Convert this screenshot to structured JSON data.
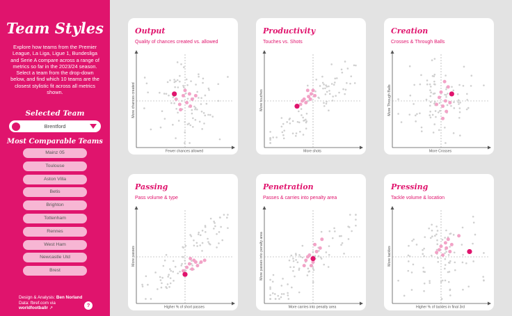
{
  "sidebar": {
    "title": "Team Styles",
    "intro": "Explore how teams from the Premier League, La Liga, Ligue 1, Bundesliga and Serie A compare across a range of metrics so far in the 2023/24 season. Select a team from the drop-down below, and find which 10 teams are the closest stylistic fit across all metrics shown.",
    "selected_heading": "Selected Team",
    "selected_team": "Brentford",
    "comparable_heading": "Most Comparable Teams",
    "comparable_teams": [
      "Mainz 05",
      "Toulouse",
      "Aston Villa",
      "Betis",
      "Brighton",
      "Tottenham",
      "Rennes",
      "West Ham",
      "Newcastle Utd",
      "Brest"
    ],
    "credit_label": "Design & Analysis:",
    "credit_name": "Ben Norland",
    "data_source_1": "Data: fbref.com via",
    "data_source_2": "worldfootballr",
    "help_label": "?"
  },
  "colors": {
    "brand": "#e0146d",
    "comparable": "#f2a3c7",
    "other": "#cfcfcf"
  },
  "chart_data": [
    {
      "type": "scatter",
      "title": "Output",
      "subtitle": "Quality of chances created vs. allowed",
      "xlabel": "Fewer chances allowed",
      "ylabel": "More chances created",
      "seed": 11,
      "mode": "random",
      "selected": [
        0.38,
        0.58
      ],
      "comparable": [
        [
          0.48,
          0.56
        ],
        [
          0.55,
          0.58
        ],
        [
          0.52,
          0.48
        ],
        [
          0.44,
          0.46
        ],
        [
          0.58,
          0.52
        ],
        [
          0.4,
          0.52
        ],
        [
          0.62,
          0.56
        ],
        [
          0.5,
          0.62
        ],
        [
          0.45,
          0.4
        ],
        [
          0.56,
          0.44
        ]
      ]
    },
    {
      "type": "scatter",
      "title": "Productivity",
      "subtitle": "Touches vs. Shots",
      "xlabel": "More shots",
      "ylabel": "More touches",
      "seed": 23,
      "mode": "corr",
      "selected": [
        0.32,
        0.44
      ],
      "comparable": [
        [
          0.4,
          0.52
        ],
        [
          0.45,
          0.55
        ],
        [
          0.48,
          0.58
        ],
        [
          0.5,
          0.62
        ],
        [
          0.42,
          0.48
        ],
        [
          0.38,
          0.5
        ],
        [
          0.52,
          0.56
        ],
        [
          0.44,
          0.62
        ],
        [
          0.36,
          0.46
        ],
        [
          0.47,
          0.52
        ]
      ]
    },
    {
      "type": "scatter",
      "title": "Creation",
      "subtitle": "Crosses & Through Balls",
      "xlabel": "More Crosses",
      "ylabel": "More Through Balls",
      "seed": 37,
      "mode": "random",
      "selected": [
        0.62,
        0.58
      ],
      "comparable": [
        [
          0.55,
          0.5
        ],
        [
          0.52,
          0.44
        ],
        [
          0.58,
          0.66
        ],
        [
          0.48,
          0.54
        ],
        [
          0.56,
          0.38
        ],
        [
          0.5,
          0.6
        ],
        [
          0.54,
          0.72
        ],
        [
          0.6,
          0.48
        ],
        [
          0.45,
          0.46
        ],
        [
          0.52,
          0.3
        ]
      ]
    },
    {
      "type": "scatter",
      "title": "Passing",
      "subtitle": "Pass volume & type",
      "xlabel": "Higher % of short passes",
      "ylabel": "More passes",
      "seed": 41,
      "mode": "corr",
      "selected": [
        0.5,
        0.3
      ],
      "comparable": [
        [
          0.55,
          0.42
        ],
        [
          0.6,
          0.46
        ],
        [
          0.58,
          0.36
        ],
        [
          0.62,
          0.44
        ],
        [
          0.52,
          0.38
        ],
        [
          0.68,
          0.44
        ],
        [
          0.48,
          0.34
        ],
        [
          0.56,
          0.48
        ],
        [
          0.64,
          0.4
        ],
        [
          0.72,
          0.46
        ]
      ]
    },
    {
      "type": "scatter",
      "title": "Penetration",
      "subtitle": "Passes & carries into penalty area",
      "xlabel": "More carries into penalty area",
      "ylabel": "More passes into penalty area",
      "seed": 53,
      "mode": "corr",
      "selected": [
        0.5,
        0.48
      ],
      "comparable": [
        [
          0.42,
          0.46
        ],
        [
          0.46,
          0.52
        ],
        [
          0.54,
          0.56
        ],
        [
          0.48,
          0.4
        ],
        [
          0.58,
          0.6
        ],
        [
          0.52,
          0.64
        ],
        [
          0.44,
          0.5
        ],
        [
          0.4,
          0.4
        ],
        [
          0.6,
          0.7
        ],
        [
          0.5,
          0.44
        ]
      ]
    },
    {
      "type": "scatter",
      "title": "Pressing",
      "subtitle": "Tackle volume & location",
      "xlabel": "Higher % of tackles in final 3rd",
      "ylabel": "More tackles",
      "seed": 67,
      "mode": "random",
      "selected": [
        0.82,
        0.56
      ],
      "comparable": [
        [
          0.5,
          0.62
        ],
        [
          0.55,
          0.66
        ],
        [
          0.48,
          0.58
        ],
        [
          0.58,
          0.7
        ],
        [
          0.52,
          0.52
        ],
        [
          0.62,
          0.64
        ],
        [
          0.45,
          0.55
        ],
        [
          0.7,
          0.74
        ],
        [
          0.56,
          0.6
        ],
        [
          0.6,
          0.56
        ]
      ]
    }
  ]
}
